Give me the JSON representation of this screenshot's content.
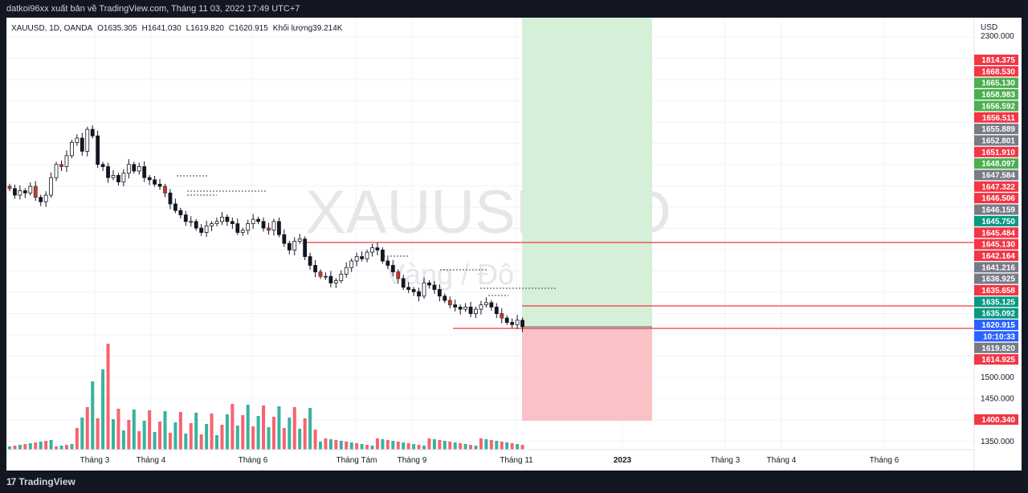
{
  "header": {
    "publisher_line": "datkoi96xx xuất bản về TradingView.com, Tháng 11 03, 2022 17:49 UTC+7"
  },
  "legend": {
    "symbol": "XAUUSD, 1D, OANDA",
    "open": "O1635.305",
    "high": "H1641.030",
    "low": "L1619.820",
    "close": "C1620.915",
    "volume": "Khối lượng39.214K"
  },
  "watermark": {
    "symbol": "XAUUSD, 1D",
    "description": "Vàng / Đô la Mỹ"
  },
  "footer": {
    "brand": "TradingView"
  },
  "chart_data": {
    "type": "candlestick",
    "currency": "USD",
    "price_axis_ticks": [
      2300.0,
      1500.0,
      1450.0,
      1350.0
    ],
    "price_markers": [
      {
        "value": "1814.375",
        "color": "#f23645"
      },
      {
        "value": "1668.530",
        "color": "#f23645"
      },
      {
        "value": "1665.130",
        "color": "#4caf50"
      },
      {
        "value": "1658.983",
        "color": "#4caf50"
      },
      {
        "value": "1656.592",
        "color": "#4caf50"
      },
      {
        "value": "1656.511",
        "color": "#f23645"
      },
      {
        "value": "1655.889",
        "color": "#787b86"
      },
      {
        "value": "1652.801",
        "color": "#787b86"
      },
      {
        "value": "1651.910",
        "color": "#f23645"
      },
      {
        "value": "1648.097",
        "color": "#4caf50"
      },
      {
        "value": "1647.584",
        "color": "#787b86"
      },
      {
        "value": "1647.322",
        "color": "#f23645"
      },
      {
        "value": "1646.506",
        "color": "#f23645"
      },
      {
        "value": "1646.159",
        "color": "#787b86"
      },
      {
        "value": "1645.750",
        "color": "#089981"
      },
      {
        "value": "1645.484",
        "color": "#f23645"
      },
      {
        "value": "1645.130",
        "color": "#f23645"
      },
      {
        "value": "1642.164",
        "color": "#f23645"
      },
      {
        "value": "1641.216",
        "color": "#787b86"
      },
      {
        "value": "1636.925",
        "color": "#787b86"
      },
      {
        "value": "1635.658",
        "color": "#f23645"
      },
      {
        "value": "1635.125",
        "color": "#089981"
      },
      {
        "value": "1635.092",
        "color": "#089981"
      },
      {
        "value": "1620.915",
        "color": "#2962ff"
      },
      {
        "value": "10:10:33",
        "color": "#2962ff"
      },
      {
        "value": "1619.820",
        "color": "#787b86"
      },
      {
        "value": "1614.925",
        "color": "#f23645"
      },
      {
        "value": "1400.340",
        "color": "#f23645"
      }
    ],
    "time_axis_labels": [
      "Tháng 3",
      "Tháng 4",
      "Tháng 6",
      "Tháng Tám",
      "Tháng 9",
      "Tháng 11",
      "2023",
      "Tháng 3",
      "Tháng 4",
      "Tháng 6"
    ],
    "position_tool": {
      "entry": 1620.915,
      "stop": 1400.34,
      "target": 1814.375
    },
    "horizontal_lines": [
      1645.13,
      1635.125,
      1620.915
    ],
    "candles_close_approx": [
      1935,
      1920,
      1930,
      1925,
      1940,
      1915,
      1905,
      1920,
      1960,
      1990,
      1985,
      2010,
      2040,
      2050,
      2020,
      2070,
      2055,
      1990,
      1985,
      1960,
      1965,
      1950,
      1970,
      1990,
      1975,
      1985,
      1960,
      1955,
      1945,
      1940,
      1925,
      1900,
      1885,
      1875,
      1860,
      1860,
      1845,
      1835,
      1850,
      1855,
      1860,
      1870,
      1860,
      1855,
      1835,
      1840,
      1855,
      1865,
      1860,
      1845,
      1840,
      1860,
      1830,
      1810,
      1795,
      1815,
      1820,
      1780,
      1760,
      1745,
      1735,
      1735,
      1720,
      1725,
      1740,
      1755,
      1770,
      1780,
      1775,
      1790,
      1800,
      1795,
      1770,
      1760,
      1745,
      1730,
      1710,
      1705,
      1700,
      1690,
      1720,
      1715,
      1705,
      1690,
      1680,
      1670,
      1665,
      1660,
      1665,
      1650,
      1660,
      1670,
      1675,
      1665,
      1650,
      1640,
      1630,
      1625,
      1635,
      1620
    ],
    "volume_spikes_note": "volume histogram at bottom"
  }
}
